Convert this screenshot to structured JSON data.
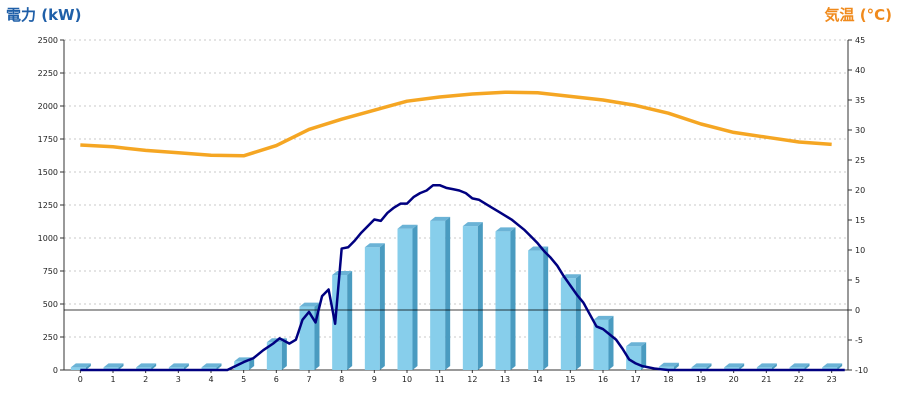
{
  "chart_data": {
    "type": "bar",
    "left_axis_title": "電力 (kW)",
    "right_axis_title": "気温 (°C)",
    "categories": [
      "0",
      "1",
      "2",
      "3",
      "4",
      "5",
      "6",
      "7",
      "8",
      "9",
      "10",
      "11",
      "12",
      "13",
      "14",
      "15",
      "16",
      "17",
      "18",
      "19",
      "20",
      "21",
      "22",
      "23"
    ],
    "left_ylim": [
      0,
      2500
    ],
    "left_ticks": [
      "0",
      "250",
      "500",
      "750",
      "1000",
      "1250",
      "1500",
      "1750",
      "2000",
      "2250",
      "2500"
    ],
    "right_ylim": [
      -10,
      45
    ],
    "right_ticks": [
      "-10",
      "-5",
      "0",
      "5",
      "10",
      "15",
      "20",
      "25",
      "30",
      "35",
      "40",
      "45"
    ],
    "grid": true,
    "bar_series": {
      "values": [
        20,
        20,
        20,
        20,
        20,
        65,
        210,
        480,
        720,
        930,
        1070,
        1130,
        1090,
        1050,
        905,
        695,
        380,
        180,
        25,
        20,
        20,
        20,
        20,
        20
      ],
      "color": "#87ceeb",
      "side_color": "#4a9bc0",
      "top_color": "#6bb3d6"
    },
    "power_line": {
      "color": "#000080",
      "x": [
        0,
        4.5,
        5,
        5.3,
        5.6,
        5.9,
        6.1,
        6.4,
        6.6,
        6.8,
        7.0,
        7.2,
        7.4,
        7.6,
        7.8,
        8.0,
        8.2,
        8.4,
        8.6,
        8.8,
        9.0,
        9.2,
        9.4,
        9.6,
        9.8,
        10.0,
        10.2,
        10.4,
        10.6,
        10.8,
        11.0,
        11.2,
        11.4,
        11.6,
        11.8,
        12.0,
        12.2,
        12.4,
        12.6,
        12.8,
        13.0,
        13.2,
        13.4,
        13.6,
        13.8,
        14.0,
        14.2,
        14.4,
        14.6,
        14.8,
        15.0,
        15.2,
        15.4,
        15.6,
        15.8,
        16.0,
        16.2,
        16.4,
        16.6,
        16.8,
        17.0,
        17.2,
        17.4,
        17.6,
        17.8,
        18.0,
        23.4
      ],
      "values": [
        0,
        0,
        60,
        90,
        150,
        200,
        240,
        200,
        230,
        380,
        440,
        360,
        560,
        610,
        350,
        920,
        930,
        980,
        1040,
        1090,
        1140,
        1130,
        1190,
        1230,
        1260,
        1260,
        1310,
        1340,
        1360,
        1400,
        1400,
        1380,
        1370,
        1360,
        1340,
        1300,
        1290,
        1260,
        1230,
        1200,
        1170,
        1140,
        1100,
        1060,
        1010,
        960,
        900,
        850,
        790,
        710,
        640,
        570,
        510,
        420,
        330,
        310,
        270,
        230,
        160,
        80,
        50,
        30,
        20,
        10,
        5,
        0,
        0
      ]
    },
    "temperature_line": {
      "color": "#f5a623",
      "values": [
        27.5,
        27.2,
        26.6,
        26.2,
        25.8,
        25.7,
        27.4,
        30.1,
        31.8,
        33.3,
        34.8,
        35.5,
        36.0,
        36.3,
        36.2,
        35.6,
        35.0,
        34.1,
        32.8,
        31.0,
        29.6,
        28.8,
        28.0,
        27.6
      ]
    },
    "zero_line_temp": 0
  }
}
